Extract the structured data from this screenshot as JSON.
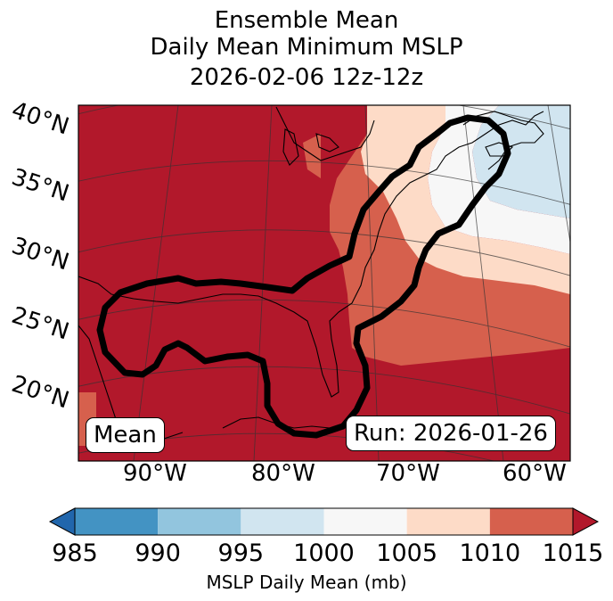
{
  "title": {
    "line1": "Ensemble Mean",
    "line2": "Daily Mean Minimum MSLP",
    "line3": "2026-02-06 12z-12z"
  },
  "map": {
    "lat_labels": [
      "40°N",
      "35°N",
      "30°N",
      "25°N",
      "20°N"
    ],
    "lon_labels": [
      "90°W",
      "80°W",
      "70°W",
      "60°W"
    ],
    "mean_label": "Mean",
    "run_label": "Run: 2026-01-26"
  },
  "colorbar": {
    "ticks": [
      "985",
      "990",
      "995",
      "1000",
      "1005",
      "1010",
      "1015"
    ],
    "colors": [
      "#4393c3",
      "#92c5de",
      "#d1e5f0",
      "#f7f7f7",
      "#fddbc7",
      "#d6604d"
    ],
    "under_color": "#2166ac",
    "over_color": "#b2182b",
    "label": "MSLP Daily Mean (mb)"
  }
}
